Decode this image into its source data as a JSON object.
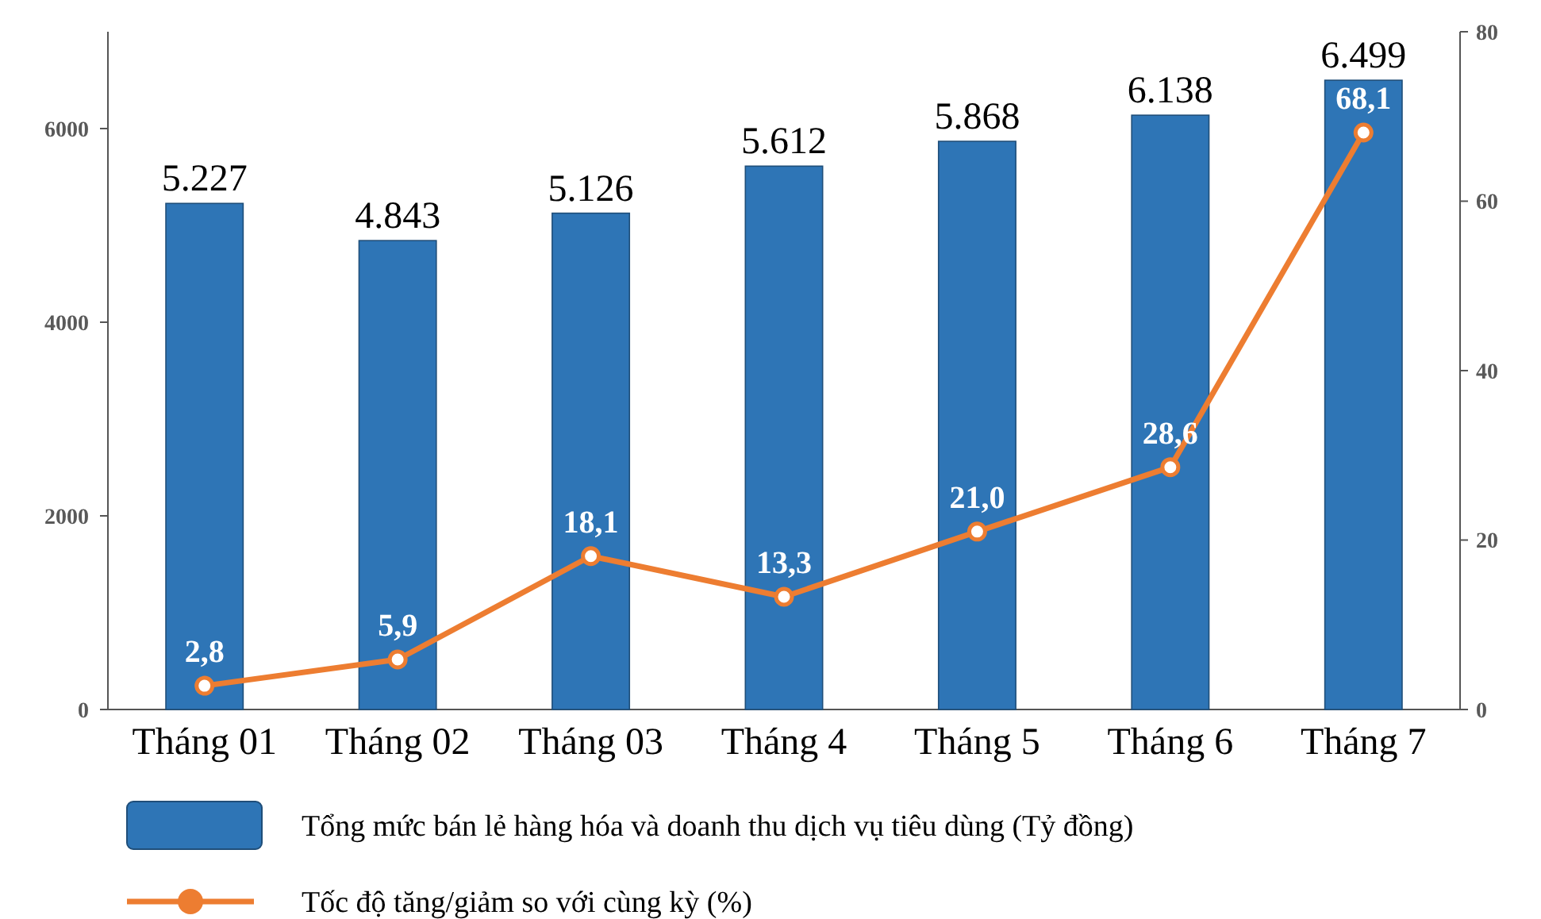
{
  "chart_data": {
    "type": "bar",
    "categories": [
      "Tháng 01",
      "Tháng 02",
      "Tháng 03",
      "Tháng 4",
      "Tháng 5",
      "Tháng 6",
      "Tháng 7"
    ],
    "series": [
      {
        "name": "Tổng mức bán lẻ hàng hóa và doanh thu dịch vụ tiêu dùng (Tỷ đồng)",
        "color": "#2e75b6",
        "values": [
          5227,
          4843,
          5126,
          5612,
          5868,
          6138,
          6499
        ],
        "value_labels": [
          "5.227",
          "4.843",
          "5.126",
          "5.612",
          "5.868",
          "6.138",
          "6.499"
        ]
      },
      {
        "name": "Tốc độ tăng/giảm so với cùng kỳ (%)",
        "type": "line",
        "axis": "y2",
        "color": "#ed7d31",
        "marker": "circle",
        "values": [
          2.8,
          5.9,
          18.1,
          13.3,
          21.0,
          28.6,
          68.1
        ],
        "value_labels": [
          "2,8",
          "5,9",
          "18,1",
          "13,3",
          "21,0",
          "28,6",
          "68,1"
        ]
      }
    ],
    "ylim": [
      0,
      7000
    ],
    "yticks": [
      0,
      2000,
      4000,
      6000
    ],
    "y2lim": [
      0,
      80
    ],
    "y2ticks": [
      0,
      20,
      40,
      60,
      80
    ],
    "legend": "bottom",
    "grid": false
  }
}
